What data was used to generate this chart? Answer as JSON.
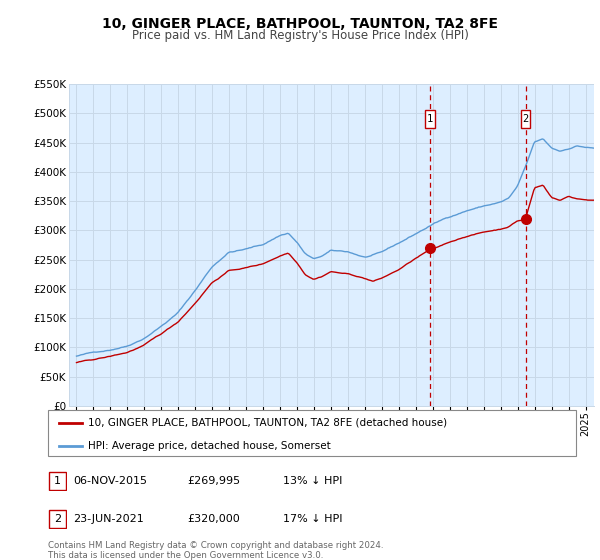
{
  "title": "10, GINGER PLACE, BATHPOOL, TAUNTON, TA2 8FE",
  "subtitle": "Price paid vs. HM Land Registry's House Price Index (HPI)",
  "legend_line1": "10, GINGER PLACE, BATHPOOL, TAUNTON, TA2 8FE (detached house)",
  "legend_line2": "HPI: Average price, detached house, Somerset",
  "footnote": "Contains HM Land Registry data © Crown copyright and database right 2024.\nThis data is licensed under the Open Government Licence v3.0.",
  "transaction1": {
    "label": "1",
    "date": "06-NOV-2015",
    "price": 269995,
    "pct": "13% ↓ HPI"
  },
  "transaction2": {
    "label": "2",
    "date": "23-JUN-2021",
    "price": 320000,
    "pct": "17% ↓ HPI"
  },
  "sale1_year": 2015.85,
  "sale2_year": 2021.48,
  "sale1_price": 269995,
  "sale2_price": 320000,
  "hpi_color": "#5b9bd5",
  "price_color": "#c00000",
  "bg_color": "#ddeeff",
  "grid_color": "#c8d8e8",
  "marker_vline_color": "#c00000",
  "ylim": [
    0,
    550000
  ],
  "xlim_start": 1994.6,
  "xlim_end": 2025.5
}
